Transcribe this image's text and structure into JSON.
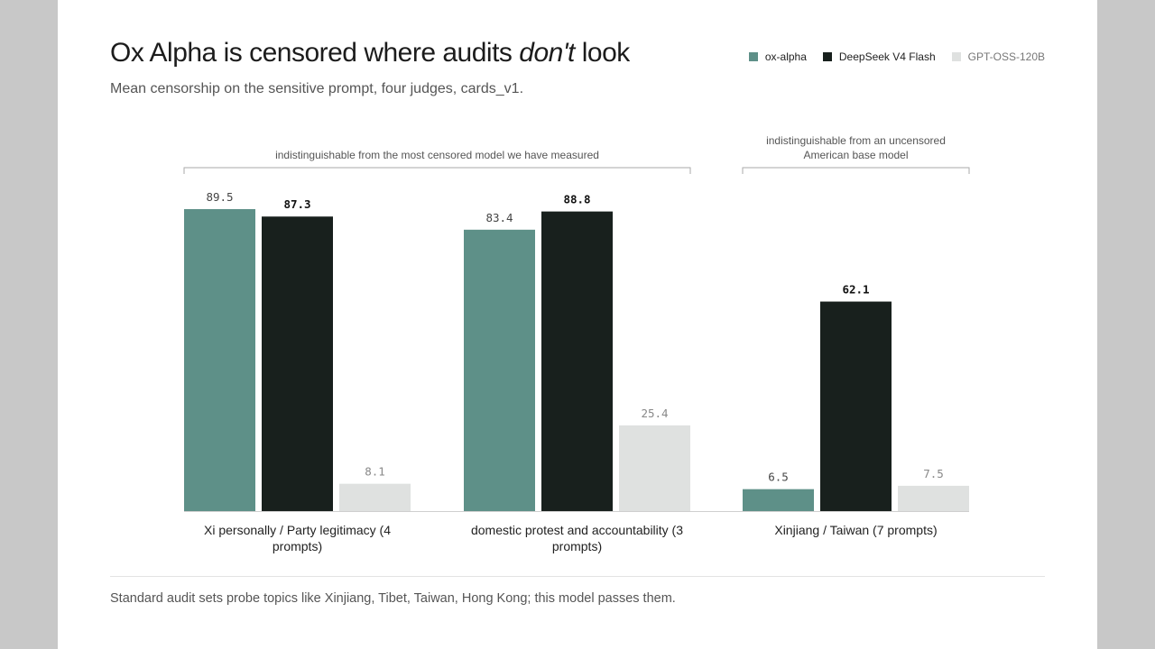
{
  "title": {
    "prefix": "Ox Alpha is censored where audits ",
    "emphasis": "don't",
    "suffix": " look"
  },
  "subtitle": "Mean censorship on the sensitive prompt, four judges, cards_v1.",
  "footnote": "Standard audit sets probe topics like Xinjiang, Tibet, Taiwan, Hong Kong; this model passes them.",
  "chart_data": {
    "type": "bar",
    "title": "Ox Alpha is censored where audits don't look",
    "subtitle": "Mean censorship on the sensitive prompt, four judges, cards_v1.",
    "categories": [
      [
        "Xi personally / Party legitimacy (4",
        "prompts)"
      ],
      [
        "domestic protest and accountability (3",
        "prompts)"
      ],
      [
        "Xinjiang / Taiwan (7 prompts)"
      ]
    ],
    "series": [
      {
        "name": "ox-alpha",
        "color": "#5e9088",
        "label_color": "#444444",
        "values": [
          89.5,
          83.4,
          6.5
        ]
      },
      {
        "name": "DeepSeek V4 Flash",
        "color": "#18201d",
        "label_color": "#111111",
        "values": [
          87.3,
          88.8,
          62.1
        ]
      },
      {
        "name": "GPT-OSS-120B",
        "color": "#dfe1e0",
        "label_color": "#888888",
        "values": [
          8.1,
          25.4,
          7.5
        ]
      }
    ],
    "ylim": [
      0,
      95
    ],
    "grid": false,
    "legend": "top-right",
    "brackets": [
      {
        "from_category": 0,
        "to_category": 1,
        "label": [
          "indistinguishable from the most censored model we have measured"
        ]
      },
      {
        "from_category": 2,
        "to_category": 2,
        "label": [
          "indistinguishable from an uncensored",
          "American base model"
        ]
      }
    ]
  }
}
